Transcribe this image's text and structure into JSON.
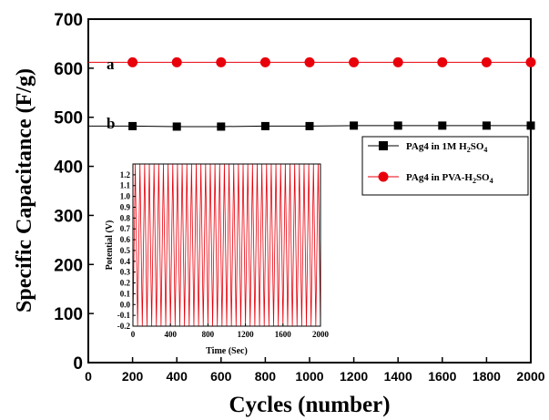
{
  "chart_data": [
    {
      "type": "line",
      "xlabel": "Cycles (number)",
      "ylabel": "Specific Capacitance (F/g)",
      "xlim": [
        0,
        2000
      ],
      "ylim": [
        0,
        700
      ],
      "xticks": [
        0,
        200,
        400,
        600,
        800,
        1000,
        1200,
        1400,
        1600,
        1800,
        2000
      ],
      "yticks": [
        0,
        100,
        200,
        300,
        400,
        500,
        600,
        700
      ],
      "grid": false,
      "legend_position": "right",
      "series": [
        {
          "name": "PAg4 in 1M H2SO4",
          "tag": "b",
          "marker": "square",
          "color": "#000000",
          "x": [
            200,
            400,
            600,
            800,
            1000,
            1200,
            1400,
            1600,
            1800,
            2000
          ],
          "values": [
            482,
            481,
            481,
            482,
            482,
            483,
            483,
            483,
            483,
            483
          ]
        },
        {
          "name": "PAg4 in PVA-H2SO4",
          "tag": "a",
          "marker": "circle",
          "color": "#ff0000",
          "x": [
            200,
            400,
            600,
            800,
            1000,
            1200,
            1400,
            1600,
            1800,
            2000
          ],
          "values": [
            612,
            612,
            612,
            612,
            612,
            612,
            612,
            612,
            612,
            612
          ]
        }
      ],
      "legend": {
        "entries": [
          {
            "prefix": "PAg4 in 1M H",
            "sub1": "2",
            "mid": "SO",
            "sub2": "4"
          },
          {
            "prefix": "PAg4 in PVA-H",
            "sub1": "2",
            "mid": "SO",
            "sub2": "4"
          }
        ]
      }
    },
    {
      "type": "line",
      "xlabel": "Time (Sec)",
      "ylabel": "Potential (V)",
      "xlim": [
        0,
        2000
      ],
      "ylim": [
        -0.2,
        1.3
      ],
      "xticks": [
        0,
        400,
        800,
        1200,
        1600,
        2000
      ],
      "yticks": [
        -0.2,
        -0.1,
        0.0,
        0.1,
        0.2,
        0.3,
        0.4,
        0.5,
        0.6,
        0.7,
        0.8,
        0.9,
        1.0,
        1.1,
        1.2
      ],
      "ytick_labels": [
        "-0.2",
        "-0.1",
        "0.0",
        "0.1",
        "0.2",
        "0.3",
        "0.4",
        "0.5",
        "0.6",
        "0.7",
        "0.8",
        "0.9",
        "1.0",
        "1.1",
        "1.2"
      ],
      "color": "#e8000b",
      "waveform": "triangular charge-discharge",
      "cycles": 40,
      "min_potential": -0.2,
      "max_potential": 1.3
    }
  ]
}
